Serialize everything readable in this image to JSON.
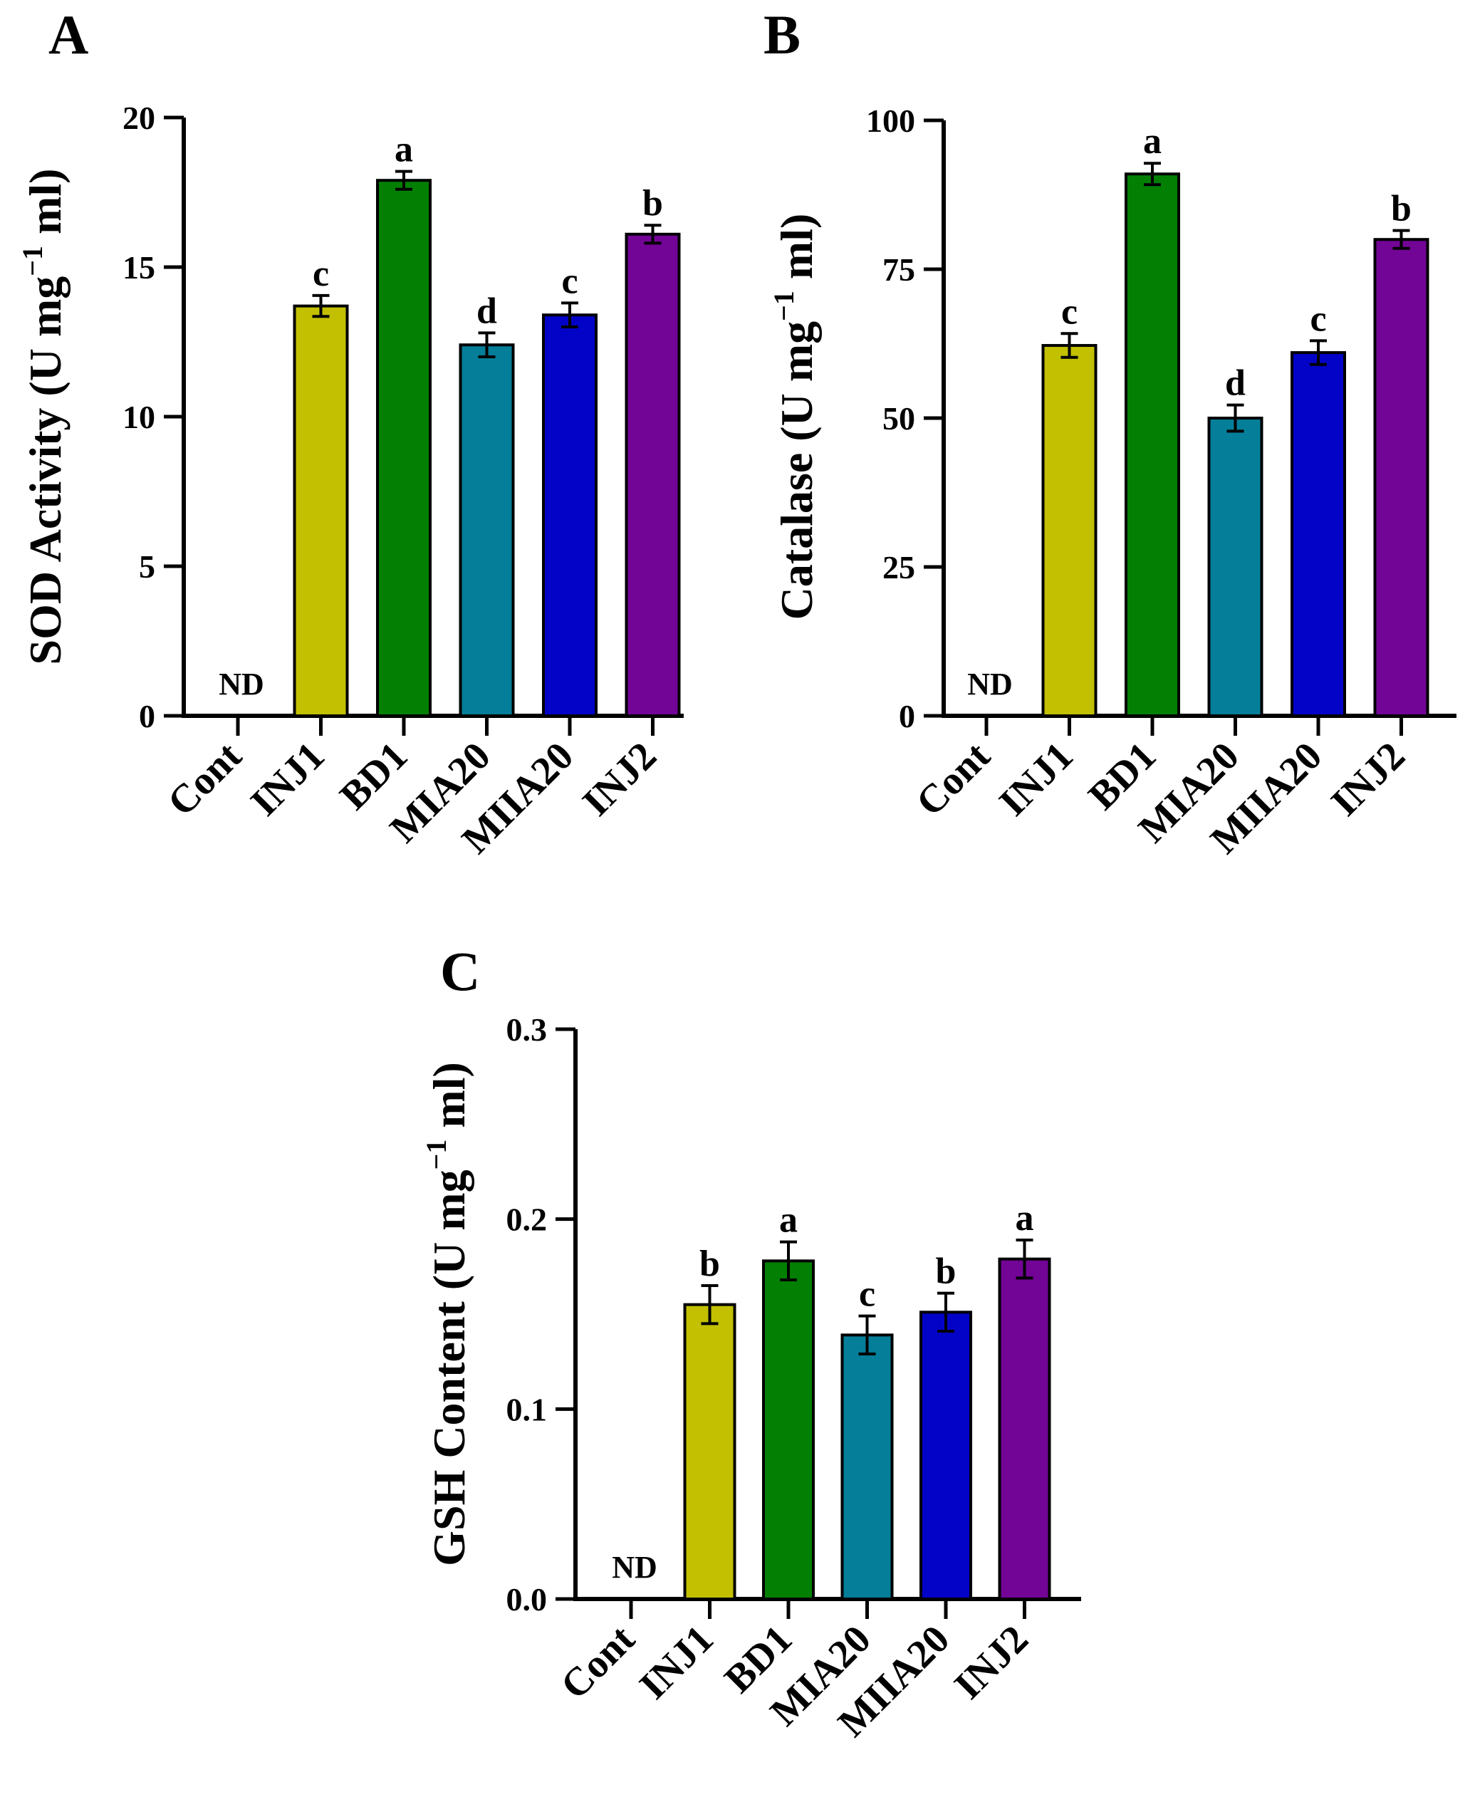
{
  "chart_data": [
    {
      "panel": "A",
      "type": "bar",
      "ylabel_main": "SOD Activity (U mg",
      "ylabel_sup": "−1",
      "ylabel_end": " ml)",
      "ylim": [
        0,
        20
      ],
      "yticks": [
        0,
        5,
        10,
        15,
        20
      ],
      "tick_labels": [
        "0",
        "5",
        "10",
        "15",
        "20"
      ],
      "categories": [
        "Cont",
        "INJ1",
        "BD1",
        "MIA20",
        "MIIA20",
        "INJ2"
      ],
      "values": [
        0,
        13.7,
        17.9,
        12.4,
        13.4,
        16.1
      ],
      "errors": [
        0,
        0.35,
        0.3,
        0.4,
        0.4,
        0.3
      ],
      "sig": [
        "",
        "c",
        "a",
        "d",
        "c",
        "b"
      ],
      "nd": [
        "ND",
        "",
        "",
        "",
        "",
        ""
      ]
    },
    {
      "panel": "B",
      "type": "bar",
      "ylabel_main": "Catalase (U mg",
      "ylabel_sup": "−1",
      "ylabel_end": " ml)",
      "ylim": [
        0,
        100
      ],
      "yticks": [
        0,
        25,
        50,
        75,
        100
      ],
      "tick_labels": [
        "0",
        "25",
        "50",
        "75",
        "100"
      ],
      "categories": [
        "Cont",
        "INJ1",
        "BD1",
        "MIA20",
        "MIIA20",
        "INJ2"
      ],
      "values": [
        0,
        62.2,
        91.0,
        50.0,
        61.0,
        80.0
      ],
      "errors": [
        0,
        2.0,
        1.8,
        2.2,
        2.0,
        1.5
      ],
      "sig": [
        "",
        "c",
        "a",
        "d",
        "c",
        "b"
      ],
      "nd": [
        "ND",
        "",
        "",
        "",
        "",
        ""
      ]
    },
    {
      "panel": "C",
      "type": "bar",
      "ylabel_main": "GSH Content (U mg",
      "ylabel_sup": "−1",
      "ylabel_end": " ml)",
      "ylim": [
        0,
        0.3
      ],
      "yticks": [
        0,
        0.1,
        0.2,
        0.3
      ],
      "tick_labels": [
        "0.0",
        "0.1",
        "0.2",
        "0.3"
      ],
      "categories": [
        "Cont",
        "INJ1",
        "BD1",
        "MIA20",
        "MIIA20",
        "INJ2"
      ],
      "values": [
        0,
        0.155,
        0.178,
        0.139,
        0.151,
        0.179
      ],
      "errors": [
        0,
        0.01,
        0.01,
        0.01,
        0.01,
        0.01
      ],
      "sig": [
        "",
        "b",
        "a",
        "c",
        "b",
        "a"
      ],
      "nd": [
        "ND",
        "",
        "",
        "",
        "",
        ""
      ]
    }
  ],
  "colors": {
    "bars": [
      "#ffffff",
      "#c2c000",
      "#038003",
      "#047e99",
      "#0303c8",
      "#720496"
    ],
    "outline": "#000000"
  }
}
